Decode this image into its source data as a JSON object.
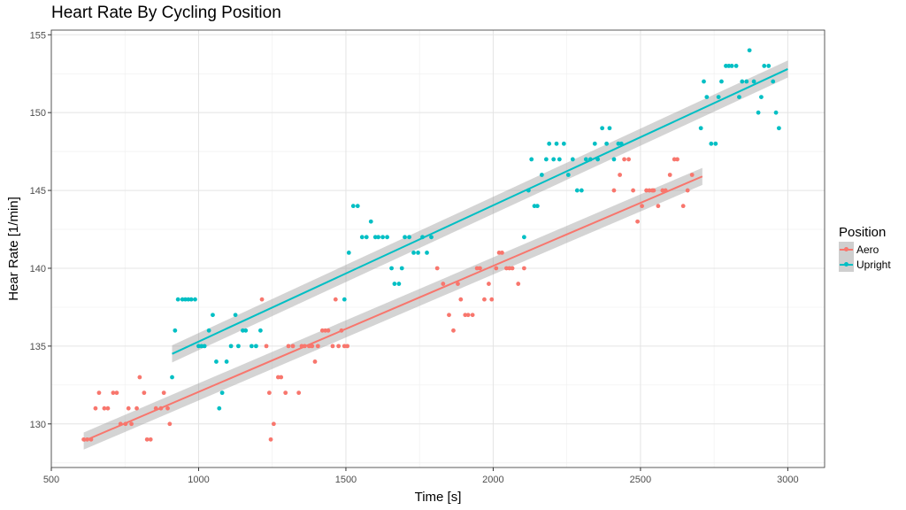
{
  "chart_data": {
    "type": "scatter",
    "title": "Heart Rate By Cycling Position",
    "xlabel": "Time [s]",
    "ylabel": "Hear Rate [1/min]",
    "xlim": [
      500,
      3125
    ],
    "ylim": [
      127.2,
      155.3
    ],
    "x_ticks": [
      500,
      1000,
      1500,
      2000,
      2500,
      3000
    ],
    "y_ticks": [
      130,
      135,
      140,
      145,
      150,
      155
    ],
    "grid": true,
    "legend_title": "Position",
    "legend_position": "right",
    "series": [
      {
        "name": "Aero",
        "color": "#F8766D",
        "fit": {
          "x0": 610,
          "y0": 128.9,
          "x1": 2710,
          "y1": 145.9,
          "se": 0.55
        },
        "points": [
          [
            610,
            129
          ],
          [
            622,
            129
          ],
          [
            635,
            129
          ],
          [
            650,
            131
          ],
          [
            662,
            132
          ],
          [
            680,
            131
          ],
          [
            692,
            131
          ],
          [
            710,
            132
          ],
          [
            722,
            132
          ],
          [
            735,
            130
          ],
          [
            752,
            130
          ],
          [
            762,
            131
          ],
          [
            772,
            130
          ],
          [
            790,
            131
          ],
          [
            800,
            133
          ],
          [
            815,
            132
          ],
          [
            825,
            129
          ],
          [
            837,
            129
          ],
          [
            855,
            131
          ],
          [
            872,
            131
          ],
          [
            882,
            132
          ],
          [
            895,
            131
          ],
          [
            902,
            130
          ],
          [
            1215,
            138
          ],
          [
            1230,
            135
          ],
          [
            1240,
            132
          ],
          [
            1245,
            129
          ],
          [
            1255,
            130
          ],
          [
            1270,
            133
          ],
          [
            1280,
            133
          ],
          [
            1295,
            132
          ],
          [
            1305,
            135
          ],
          [
            1320,
            135
          ],
          [
            1340,
            132
          ],
          [
            1350,
            135
          ],
          [
            1360,
            135
          ],
          [
            1375,
            135
          ],
          [
            1385,
            135
          ],
          [
            1395,
            134
          ],
          [
            1405,
            135
          ],
          [
            1420,
            136
          ],
          [
            1430,
            136
          ],
          [
            1440,
            136
          ],
          [
            1455,
            135
          ],
          [
            1465,
            138
          ],
          [
            1475,
            135
          ],
          [
            1485,
            136
          ],
          [
            1495,
            135
          ],
          [
            1505,
            135
          ],
          [
            1810,
            140
          ],
          [
            1830,
            139
          ],
          [
            1850,
            137
          ],
          [
            1865,
            136
          ],
          [
            1880,
            139
          ],
          [
            1890,
            138
          ],
          [
            1905,
            137
          ],
          [
            1915,
            137
          ],
          [
            1930,
            137
          ],
          [
            1945,
            140
          ],
          [
            1955,
            140
          ],
          [
            1970,
            138
          ],
          [
            1985,
            139
          ],
          [
            1995,
            138
          ],
          [
            2010,
            140
          ],
          [
            2020,
            141
          ],
          [
            2030,
            141
          ],
          [
            2045,
            140
          ],
          [
            2055,
            140
          ],
          [
            2065,
            140
          ],
          [
            2085,
            139
          ],
          [
            2105,
            140
          ],
          [
            2410,
            145
          ],
          [
            2430,
            146
          ],
          [
            2445,
            147
          ],
          [
            2460,
            147
          ],
          [
            2475,
            145
          ],
          [
            2490,
            143
          ],
          [
            2505,
            144
          ],
          [
            2520,
            145
          ],
          [
            2530,
            145
          ],
          [
            2540,
            145
          ],
          [
            2545,
            145
          ],
          [
            2560,
            144
          ],
          [
            2575,
            145
          ],
          [
            2585,
            145
          ],
          [
            2600,
            146
          ],
          [
            2615,
            147
          ],
          [
            2625,
            147
          ],
          [
            2645,
            144
          ],
          [
            2660,
            145
          ],
          [
            2675,
            146
          ]
        ]
      },
      {
        "name": "Upright",
        "color": "#00BFC4",
        "fit": {
          "x0": 910,
          "y0": 134.5,
          "x1": 3000,
          "y1": 152.8,
          "se": 0.55
        },
        "points": [
          [
            910,
            133
          ],
          [
            920,
            136
          ],
          [
            930,
            138
          ],
          [
            945,
            138
          ],
          [
            955,
            138
          ],
          [
            965,
            138
          ],
          [
            975,
            138
          ],
          [
            988,
            138
          ],
          [
            1000,
            135
          ],
          [
            1010,
            135
          ],
          [
            1020,
            135
          ],
          [
            1035,
            136
          ],
          [
            1048,
            137
          ],
          [
            1060,
            134
          ],
          [
            1070,
            131
          ],
          [
            1080,
            132
          ],
          [
            1095,
            134
          ],
          [
            1110,
            135
          ],
          [
            1125,
            137
          ],
          [
            1135,
            135
          ],
          [
            1150,
            136
          ],
          [
            1160,
            136
          ],
          [
            1180,
            135
          ],
          [
            1195,
            135
          ],
          [
            1210,
            136
          ],
          [
            1495,
            138
          ],
          [
            1510,
            141
          ],
          [
            1525,
            144
          ],
          [
            1540,
            144
          ],
          [
            1555,
            142
          ],
          [
            1570,
            142
          ],
          [
            1585,
            143
          ],
          [
            1600,
            142
          ],
          [
            1610,
            142
          ],
          [
            1625,
            142
          ],
          [
            1640,
            142
          ],
          [
            1655,
            140
          ],
          [
            1665,
            139
          ],
          [
            1680,
            139
          ],
          [
            1690,
            140
          ],
          [
            1700,
            142
          ],
          [
            1715,
            142
          ],
          [
            1730,
            141
          ],
          [
            1745,
            141
          ],
          [
            1760,
            142
          ],
          [
            1775,
            141
          ],
          [
            1790,
            142
          ],
          [
            2105,
            142
          ],
          [
            2120,
            145
          ],
          [
            2130,
            147
          ],
          [
            2140,
            144
          ],
          [
            2150,
            144
          ],
          [
            2165,
            146
          ],
          [
            2180,
            147
          ],
          [
            2190,
            148
          ],
          [
            2205,
            147
          ],
          [
            2215,
            148
          ],
          [
            2225,
            147
          ],
          [
            2240,
            148
          ],
          [
            2255,
            146
          ],
          [
            2270,
            147
          ],
          [
            2285,
            145
          ],
          [
            2300,
            145
          ],
          [
            2315,
            147
          ],
          [
            2330,
            147
          ],
          [
            2345,
            148
          ],
          [
            2355,
            147
          ],
          [
            2370,
            149
          ],
          [
            2385,
            148
          ],
          [
            2395,
            149
          ],
          [
            2410,
            147
          ],
          [
            2425,
            148
          ],
          [
            2435,
            148
          ],
          [
            2705,
            149
          ],
          [
            2715,
            152
          ],
          [
            2725,
            151
          ],
          [
            2740,
            148
          ],
          [
            2755,
            148
          ],
          [
            2765,
            151
          ],
          [
            2775,
            152
          ],
          [
            2790,
            153
          ],
          [
            2800,
            153
          ],
          [
            2810,
            153
          ],
          [
            2825,
            153
          ],
          [
            2835,
            151
          ],
          [
            2845,
            152
          ],
          [
            2860,
            152
          ],
          [
            2870,
            154
          ],
          [
            2885,
            152
          ],
          [
            2900,
            150
          ],
          [
            2910,
            151
          ],
          [
            2920,
            153
          ],
          [
            2935,
            153
          ],
          [
            2950,
            152
          ],
          [
            2960,
            150
          ],
          [
            2970,
            149
          ]
        ]
      }
    ]
  }
}
